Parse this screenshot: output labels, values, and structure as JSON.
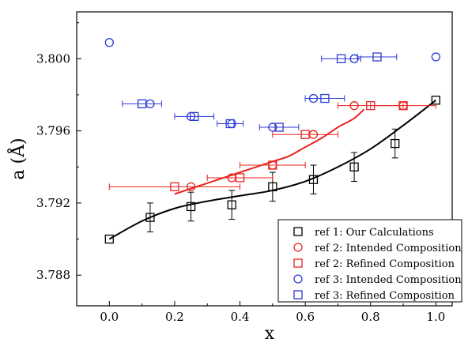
{
  "chart_data": {
    "type": "scatter",
    "title": "",
    "xlabel": "x",
    "ylabel": "a (Å)",
    "xlim": [
      -0.1,
      1.05
    ],
    "ylim": [
      3.7863,
      3.8026
    ],
    "x_ticks": [
      0.0,
      0.2,
      0.4,
      0.6,
      0.8,
      1.0
    ],
    "x_tick_labels": [
      "0.0",
      "0.2",
      "0.4",
      "0.6",
      "0.8",
      "1.0"
    ],
    "y_ticks": [
      3.788,
      3.792,
      3.796,
      3.8
    ],
    "y_tick_labels": [
      "3.788",
      "3.792",
      "3.796",
      "3.800"
    ],
    "grid": false,
    "legend_position": "bottom-right",
    "colors": {
      "black": "#000000",
      "red": "#e8231f",
      "blue": "#2c3ad6"
    },
    "series": [
      {
        "name": "ref 1: Our Calculations",
        "color": "#000000",
        "marker": "square",
        "points": [
          {
            "x": 0.0,
            "y": 3.79
          },
          {
            "x": 0.125,
            "y": 3.7912,
            "yerr": 0.0008
          },
          {
            "x": 0.25,
            "y": 3.7918,
            "yerr": 0.0008
          },
          {
            "x": 0.375,
            "y": 3.7919,
            "yerr": 0.0008
          },
          {
            "x": 0.5,
            "y": 3.7929,
            "yerr": 0.0008
          },
          {
            "x": 0.625,
            "y": 3.7933,
            "yerr": 0.0008
          },
          {
            "x": 0.75,
            "y": 3.794,
            "yerr": 0.0008
          },
          {
            "x": 0.875,
            "y": 3.7953,
            "yerr": 0.0008
          },
          {
            "x": 1.0,
            "y": 3.7977
          }
        ]
      },
      {
        "name": "ref 2: Intended Composition",
        "color": "#e8231f",
        "marker": "circle",
        "points": [
          {
            "x": 0.25,
            "y": 3.7929
          },
          {
            "x": 0.375,
            "y": 3.7934
          },
          {
            "x": 0.5,
            "y": 3.7941
          },
          {
            "x": 0.625,
            "y": 3.7958
          },
          {
            "x": 0.75,
            "y": 3.7974
          },
          {
            "x": 0.9,
            "y": 3.7974
          }
        ]
      },
      {
        "name": "ref 2: Refined Composition",
        "color": "#e8231f",
        "marker": "square",
        "points": [
          {
            "x": 0.2,
            "y": 3.7929,
            "xerr": 0.2
          },
          {
            "x": 0.4,
            "y": 3.7934,
            "xerr": 0.1
          },
          {
            "x": 0.5,
            "y": 3.7941,
            "xerr": 0.1
          },
          {
            "x": 0.6,
            "y": 3.7958,
            "xerr": 0.1
          },
          {
            "x": 0.8,
            "y": 3.7974,
            "xerr": 0.1
          },
          {
            "x": 0.9,
            "y": 3.7974,
            "xerr": 0.1
          }
        ]
      },
      {
        "name": "ref 3: Intended Composition",
        "color": "#2c3ad6",
        "marker": "circle",
        "points": [
          {
            "x": 0.0,
            "y": 3.8009
          },
          {
            "x": 0.125,
            "y": 3.7975
          },
          {
            "x": 0.25,
            "y": 3.7968
          },
          {
            "x": 0.375,
            "y": 3.7964
          },
          {
            "x": 0.5,
            "y": 3.7962
          },
          {
            "x": 0.625,
            "y": 3.7978
          },
          {
            "x": 0.75,
            "y": 3.8
          },
          {
            "x": 1.0,
            "y": 3.8001
          }
        ]
      },
      {
        "name": "ref 3: Refined Composition",
        "color": "#2c3ad6",
        "marker": "square",
        "points": [
          {
            "x": 0.1,
            "y": 3.7975,
            "xerr": 0.06
          },
          {
            "x": 0.26,
            "y": 3.7968,
            "xerr": 0.06
          },
          {
            "x": 0.37,
            "y": 3.7964,
            "xerr": 0.04
          },
          {
            "x": 0.52,
            "y": 3.7962,
            "xerr": 0.06
          },
          {
            "x": 0.66,
            "y": 3.7978,
            "xerr": 0.06
          },
          {
            "x": 0.71,
            "y": 3.8,
            "xerr": 0.06
          },
          {
            "x": 0.82,
            "y": 3.8001,
            "xerr": 0.06
          }
        ]
      }
    ],
    "fit_curves": [
      {
        "color": "#000000",
        "points": [
          [
            0.0,
            3.79
          ],
          [
            0.1,
            3.791
          ],
          [
            0.2,
            3.7917
          ],
          [
            0.3,
            3.7921
          ],
          [
            0.4,
            3.7924
          ],
          [
            0.5,
            3.7927
          ],
          [
            0.6,
            3.7932
          ],
          [
            0.7,
            3.794
          ],
          [
            0.8,
            3.795
          ],
          [
            0.9,
            3.7963
          ],
          [
            1.0,
            3.7977
          ]
        ]
      },
      {
        "color": "#e8231f",
        "points": [
          [
            0.2,
            3.7925
          ],
          [
            0.3,
            3.7931
          ],
          [
            0.4,
            3.7937
          ],
          [
            0.5,
            3.7943
          ],
          [
            0.55,
            3.7946
          ],
          [
            0.6,
            3.7951
          ],
          [
            0.65,
            3.7956
          ],
          [
            0.7,
            3.7962
          ],
          [
            0.75,
            3.7967
          ],
          [
            0.78,
            3.7972
          ]
        ]
      }
    ]
  }
}
